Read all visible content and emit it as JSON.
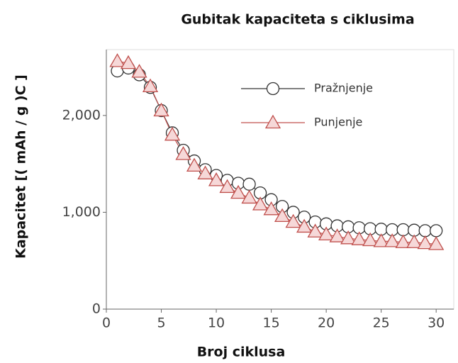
{
  "chart_data": {
    "type": "line",
    "title": "Gubitak kapaciteta s ciklusima",
    "x_label": "Broj ciklusa",
    "y_label": "Kapacitet [( mAh / g )C ]",
    "x": [
      1,
      2,
      3,
      4,
      5,
      6,
      7,
      8,
      9,
      10,
      11,
      12,
      13,
      14,
      15,
      16,
      17,
      18,
      19,
      20,
      21,
      22,
      23,
      24,
      25,
      26,
      27,
      28,
      29,
      30
    ],
    "series": [
      {
        "name": "Pražnjenje",
        "color": "#333333",
        "marker": "circle",
        "values": [
          2460,
          2490,
          2420,
          2290,
          2050,
          1820,
          1640,
          1530,
          1440,
          1380,
          1330,
          1300,
          1290,
          1200,
          1130,
          1060,
          1000,
          950,
          900,
          880,
          860,
          850,
          840,
          830,
          825,
          820,
          820,
          815,
          810,
          810
        ]
      },
      {
        "name": "Punjenje",
        "color": "#c0504d",
        "marker": "triangle",
        "values": [
          2560,
          2540,
          2450,
          2300,
          2050,
          1800,
          1600,
          1480,
          1400,
          1330,
          1260,
          1200,
          1150,
          1080,
          1030,
          960,
          900,
          850,
          800,
          770,
          750,
          730,
          720,
          710,
          700,
          700,
          690,
          690,
          680,
          670
        ]
      }
    ],
    "xlim": [
      0,
      31.6
    ],
    "xticks": [
      0,
      5,
      10,
      15,
      20,
      25,
      30
    ],
    "ylim": [
      0,
      2680
    ],
    "yticks": [
      0,
      {
        "value": 1000,
        "label": "1,000"
      },
      {
        "value": 2000,
        "label": "2,000"
      }
    ],
    "legend": "upper right"
  }
}
